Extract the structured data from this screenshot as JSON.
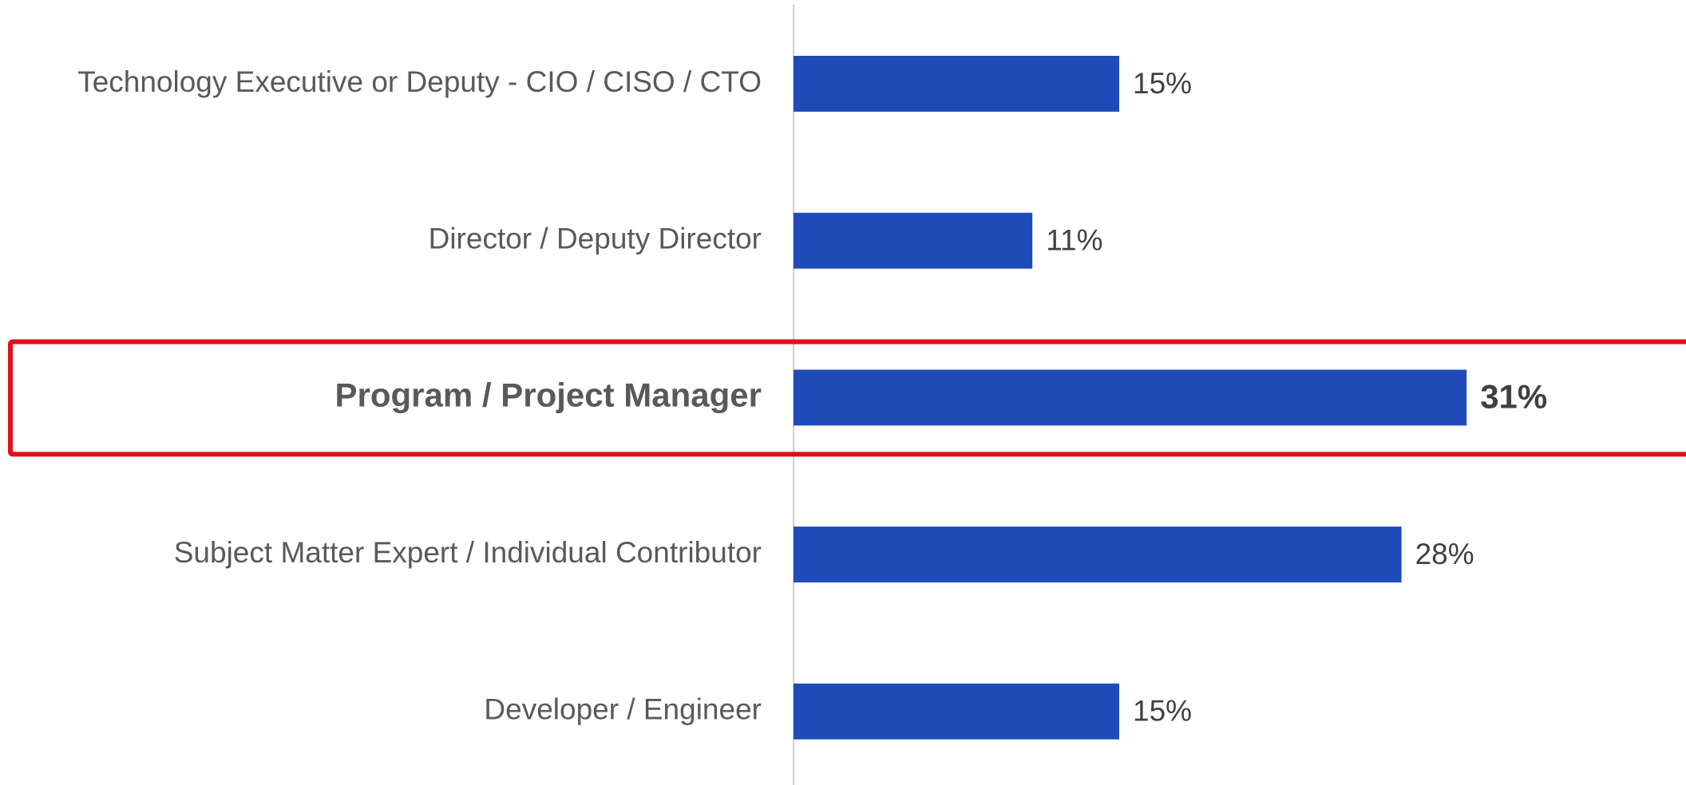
{
  "chart_data": {
    "type": "bar",
    "orientation": "horizontal",
    "categories": [
      "Technology Executive or Deputy - CIO / CISO / CTO",
      "Director / Deputy Director",
      "Program / Project Manager",
      "Subject Matter Expert / Individual Contributor",
      "Developer / Engineer"
    ],
    "values": [
      15,
      11,
      31,
      28,
      15
    ],
    "value_labels": [
      "15%",
      "11%",
      "31%",
      "28%",
      "15%"
    ],
    "color": "#1f4bb8",
    "highlight": "Program / Project Manager",
    "highlight_color": "#e0101a"
  }
}
